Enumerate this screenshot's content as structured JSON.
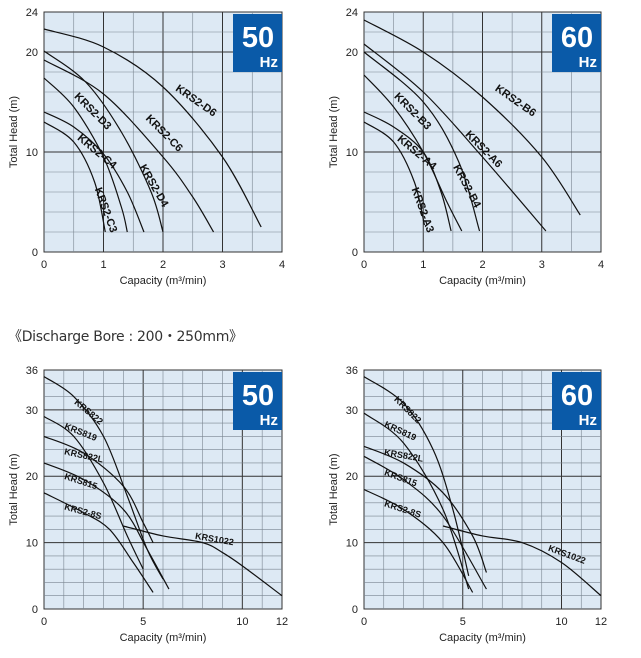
{
  "caption": "《Discharge Bore : 200・250mm》",
  "colors": {
    "plot_bg": "#dde9f4",
    "badge": "#0a5aa8",
    "line": "#111111",
    "grid": "#333333"
  },
  "chart_data": [
    {
      "type": "line",
      "badge_freq": "50",
      "badge_unit": "Hz",
      "xlabel": "Capacity (m³/min)",
      "ylabel": "Total Head (m)",
      "xlim": [
        0,
        4
      ],
      "ylim": [
        0,
        24
      ],
      "xticks": [
        0,
        1,
        2,
        3,
        4
      ],
      "yticks": [
        0,
        10,
        20,
        24
      ],
      "grid": {
        "x_minor": 0.5,
        "x_major": 1,
        "y_minor": 2,
        "y_major": 10
      },
      "series": [
        {
          "name": "KRS2-D6",
          "points": [
            [
              0,
              22.3
            ],
            [
              1,
              20.5
            ],
            [
              2,
              16.5
            ],
            [
              3,
              9.5
            ],
            [
              3.65,
              2.5
            ]
          ],
          "label_at": [
            2.2,
            16.2
          ]
        },
        {
          "name": "KRS2-C6",
          "points": [
            [
              0,
              19.2
            ],
            [
              1,
              15.8
            ],
            [
              2,
              9.5
            ],
            [
              2.5,
              5.5
            ],
            [
              2.85,
              2
            ]
          ],
          "label_at": [
            1.7,
            13.3
          ]
        },
        {
          "name": "KRS2-D4",
          "points": [
            [
              0,
              20.1
            ],
            [
              0.7,
              17
            ],
            [
              1.3,
              12
            ],
            [
              1.8,
              6
            ],
            [
              2.0,
              2
            ]
          ],
          "label_at": [
            1.6,
            8.5
          ]
        },
        {
          "name": "KRS2-D3",
          "points": [
            [
              0,
              17.4
            ],
            [
              0.5,
              14.5
            ],
            [
              1,
              9.5
            ],
            [
              1.3,
              4.5
            ],
            [
              1.4,
              2
            ]
          ],
          "label_at": [
            0.5,
            15.5
          ]
        },
        {
          "name": "KRS2-C4",
          "points": [
            [
              0,
              14
            ],
            [
              0.5,
              12.5
            ],
            [
              1,
              9.8
            ],
            [
              1.4,
              6
            ],
            [
              1.68,
              2
            ]
          ],
          "label_at": [
            0.55,
            11.3
          ]
        },
        {
          "name": "KRS2-C3",
          "points": [
            [
              0,
              13
            ],
            [
              0.5,
              11
            ],
            [
              0.85,
              7
            ],
            [
              1.03,
              2
            ]
          ],
          "label_at": [
            0.85,
            6.3
          ]
        }
      ]
    },
    {
      "type": "line",
      "badge_freq": "60",
      "badge_unit": "Hz",
      "xlabel": "Capacity (m³/min)",
      "ylabel": "Total Head (m)",
      "xlim": [
        0,
        4
      ],
      "ylim": [
        0,
        24
      ],
      "xticks": [
        0,
        1,
        2,
        3,
        4
      ],
      "yticks": [
        0,
        10,
        20,
        24
      ],
      "grid": {
        "x_minor": 0.5,
        "x_major": 1,
        "y_minor": 2,
        "y_major": 10
      },
      "series": [
        {
          "name": "KRS2-B6",
          "points": [
            [
              0,
              23.2
            ],
            [
              1,
              20
            ],
            [
              2,
              15.5
            ],
            [
              3,
              9.5
            ],
            [
              3.65,
              3.7
            ]
          ],
          "label_at": [
            2.2,
            16.2
          ]
        },
        {
          "name": "KRS2-A6",
          "points": [
            [
              0,
              20.8
            ],
            [
              1,
              16
            ],
            [
              2,
              9.5
            ],
            [
              3.07,
              2.1
            ]
          ],
          "label_at": [
            1.7,
            11.7
          ]
        },
        {
          "name": "KRS2-B4",
          "points": [
            [
              0,
              20
            ],
            [
              1,
              15
            ],
            [
              1.6,
              9
            ],
            [
              1.95,
              2.1
            ]
          ],
          "label_at": [
            1.5,
            8.5
          ]
        },
        {
          "name": "KRS2-B3",
          "points": [
            [
              0,
              17.7
            ],
            [
              0.5,
              14.5
            ],
            [
              1,
              10
            ],
            [
              1.4,
              5
            ],
            [
              1.65,
              2.1
            ]
          ],
          "label_at": [
            0.5,
            15.5
          ]
        },
        {
          "name": "KRS2-A4",
          "points": [
            [
              0,
              14
            ],
            [
              0.5,
              12.5
            ],
            [
              1,
              10
            ],
            [
              1.3,
              6
            ],
            [
              1.47,
              2.1
            ]
          ],
          "label_at": [
            0.55,
            11.2
          ]
        },
        {
          "name": "KRS2-A3",
          "points": [
            [
              0,
              13
            ],
            [
              0.5,
              11
            ],
            [
              0.85,
              7
            ],
            [
              1.02,
              2.7
            ]
          ],
          "label_at": [
            0.8,
            6.3
          ]
        }
      ]
    },
    {
      "type": "line",
      "badge_freq": "50",
      "badge_unit": "Hz",
      "xlabel": "Capacity (m³/min)",
      "ylabel": "Total Head (m)",
      "xlim": [
        0,
        12
      ],
      "ylim": [
        0,
        36
      ],
      "xticks": [
        0,
        5,
        10,
        12
      ],
      "yticks": [
        0,
        10,
        20,
        30,
        36
      ],
      "grid": {
        "x_minor": 1,
        "x_major": 5,
        "y_minor": 2,
        "y_major": 10
      },
      "series": [
        {
          "name": "KRS822",
          "points": [
            [
              0,
              35
            ],
            [
              1.5,
              32
            ],
            [
              3,
              26
            ],
            [
              4.2,
              17
            ],
            [
              5.2,
              9
            ],
            [
              6,
              4.5
            ]
          ],
          "label_at": [
            1.5,
            31
          ]
        },
        {
          "name": "KRS819",
          "points": [
            [
              0,
              29
            ],
            [
              1.5,
              26
            ],
            [
              3,
              19
            ],
            [
              4.2,
              11
            ],
            [
              5,
              6
            ]
          ],
          "label_at": [
            1.0,
            27.2
          ]
        },
        {
          "name": "KRS822L",
          "points": [
            [
              0,
              26
            ],
            [
              2,
              23.5
            ],
            [
              4,
              18.5
            ],
            [
              5,
              13
            ],
            [
              5.5,
              10
            ]
          ],
          "label_at": [
            1.0,
            23.3
          ]
        },
        {
          "name": "KRS815",
          "points": [
            [
              0,
              22
            ],
            [
              2,
              19.5
            ],
            [
              4,
              15
            ],
            [
              5.2,
              9
            ],
            [
              6.3,
              3
            ]
          ],
          "label_at": [
            1.0,
            19.6
          ]
        },
        {
          "name": "KRS2-8S",
          "points": [
            [
              0,
              17.5
            ],
            [
              2,
              14.5
            ],
            [
              3.3,
              12
            ],
            [
              4.5,
              7
            ],
            [
              5.5,
              2.5
            ]
          ],
          "label_at": [
            1.0,
            15.0
          ]
        },
        {
          "name": "KRS1022",
          "points": [
            [
              4,
              12.5
            ],
            [
              6,
              11
            ],
            [
              8,
              10
            ],
            [
              9,
              8.5
            ],
            [
              10,
              6.5
            ],
            [
              12,
              2
            ]
          ],
          "label_at": [
            7.6,
            10.6
          ]
        }
      ]
    },
    {
      "type": "line",
      "badge_freq": "60",
      "badge_unit": "Hz",
      "xlabel": "Capacity (m³/min)",
      "ylabel": "Total Head (m)",
      "xlim": [
        0,
        12
      ],
      "ylim": [
        0,
        36
      ],
      "xticks": [
        0,
        5,
        10,
        12
      ],
      "yticks": [
        0,
        10,
        20,
        30,
        36
      ],
      "grid": {
        "x_minor": 1,
        "x_major": 5,
        "y_minor": 2,
        "y_major": 10
      },
      "series": [
        {
          "name": "KRS822",
          "points": [
            [
              0,
              35
            ],
            [
              2,
              31
            ],
            [
              3.5,
              24
            ],
            [
              4.5,
              15
            ],
            [
              5.3,
              5
            ]
          ],
          "label_at": [
            1.5,
            31.5
          ]
        },
        {
          "name": "KRS819",
          "points": [
            [
              0,
              29.5
            ],
            [
              2,
              25
            ],
            [
              4,
              15
            ],
            [
              5.3,
              3
            ]
          ],
          "label_at": [
            1.0,
            27.5
          ]
        },
        {
          "name": "KRS822L",
          "points": [
            [
              0,
              24.5
            ],
            [
              2,
              22
            ],
            [
              4,
              17.5
            ],
            [
              5.5,
              11
            ],
            [
              6.2,
              5.5
            ]
          ],
          "label_at": [
            1.0,
            23.2
          ]
        },
        {
          "name": "KRS815",
          "points": [
            [
              0,
              23
            ],
            [
              2,
              19.5
            ],
            [
              4,
              14
            ],
            [
              6.2,
              3
            ]
          ],
          "label_at": [
            1.0,
            20.2
          ]
        },
        {
          "name": "KRS2-8S",
          "points": [
            [
              0,
              18
            ],
            [
              2,
              15
            ],
            [
              4,
              10
            ],
            [
              5.5,
              2.5
            ]
          ],
          "label_at": [
            1.0,
            15.5
          ]
        },
        {
          "name": "KRS1022",
          "points": [
            [
              4,
              12.5
            ],
            [
              6,
              11
            ],
            [
              8,
              10
            ],
            [
              10,
              7
            ],
            [
              12,
              2
            ]
          ],
          "label_at": [
            9.3,
            8.8
          ]
        }
      ]
    }
  ]
}
